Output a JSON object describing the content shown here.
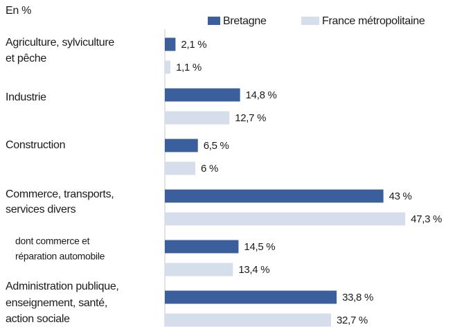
{
  "chart_data": {
    "type": "hbar",
    "subtitle": "En %",
    "categories": [
      [
        "Agriculture, sylviculture",
        "et pêche"
      ],
      [
        "Industrie"
      ],
      [
        "Construction"
      ],
      [
        "Commerce, transports,",
        "services divers"
      ],
      [
        "dont commerce et",
        "réparation automobile"
      ],
      [
        "Administration publique,",
        "enseignement, santé,",
        "action sociale"
      ]
    ],
    "series": [
      {
        "name": "Bretagne",
        "color": "#3b5f9c",
        "values": [
          2.1,
          14.8,
          6.5,
          43,
          14.5,
          33.8
        ],
        "value_labels": [
          "2,1 %",
          "14,8 %",
          "6,5 %",
          "43 %",
          "14,5 %",
          "33,8 %"
        ]
      },
      {
        "name": "France métropolitaine",
        "color": "#d6deec",
        "values": [
          1.1,
          12.7,
          6,
          47.3,
          13.4,
          32.7
        ],
        "value_labels": [
          "1,1 %",
          "12,7 %",
          "6 %",
          "47,3 %",
          "13,4 %",
          "32,7 %"
        ]
      }
    ],
    "xlim": [
      0,
      50
    ]
  }
}
